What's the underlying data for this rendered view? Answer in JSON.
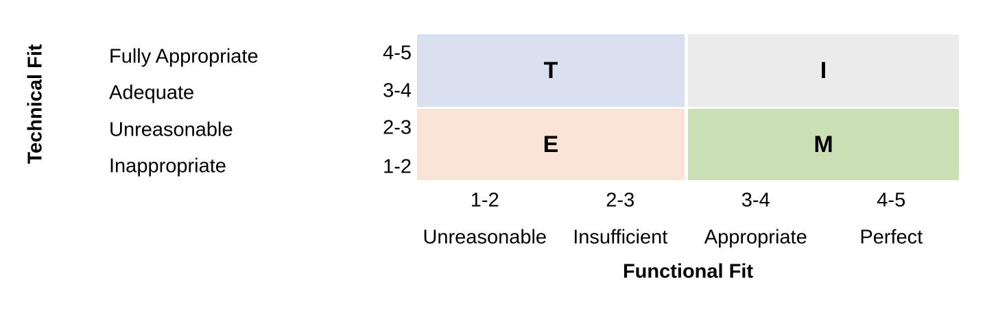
{
  "chart_data": {
    "type": "heatmap",
    "title": "",
    "xlabel": "Functional Fit",
    "ylabel": "Technical Fit",
    "grid": false,
    "legend": "none",
    "x_axis": {
      "tick_ranges": [
        "1-2",
        "2-3",
        "3-4",
        "4-5"
      ],
      "tick_labels": [
        "Unreasonable",
        "Insufficient",
        "Appropriate",
        "Perfect"
      ]
    },
    "y_axis": {
      "tick_ranges": [
        "4-5",
        "3-4",
        "2-3",
        "1-2"
      ],
      "tick_labels": [
        "Fully Appropriate",
        "Adequate",
        "Unreasonable",
        "Inappropriate"
      ]
    },
    "quadrants": [
      {
        "position": "top-left",
        "letter": "T",
        "functional_fit_range": "1-3",
        "technical_fit_range": "3-5",
        "color": "#d9e1f1"
      },
      {
        "position": "top-right",
        "letter": "I",
        "functional_fit_range": "3-5",
        "technical_fit_range": "3-5",
        "color": "#ececec"
      },
      {
        "position": "bottom-left",
        "letter": "E",
        "functional_fit_range": "1-3",
        "technical_fit_range": "1-3",
        "color": "#f9e4d6"
      },
      {
        "position": "bottom-right",
        "letter": "M",
        "functional_fit_range": "3-5",
        "technical_fit_range": "1-3",
        "color": "#cbdfb4"
      }
    ]
  }
}
